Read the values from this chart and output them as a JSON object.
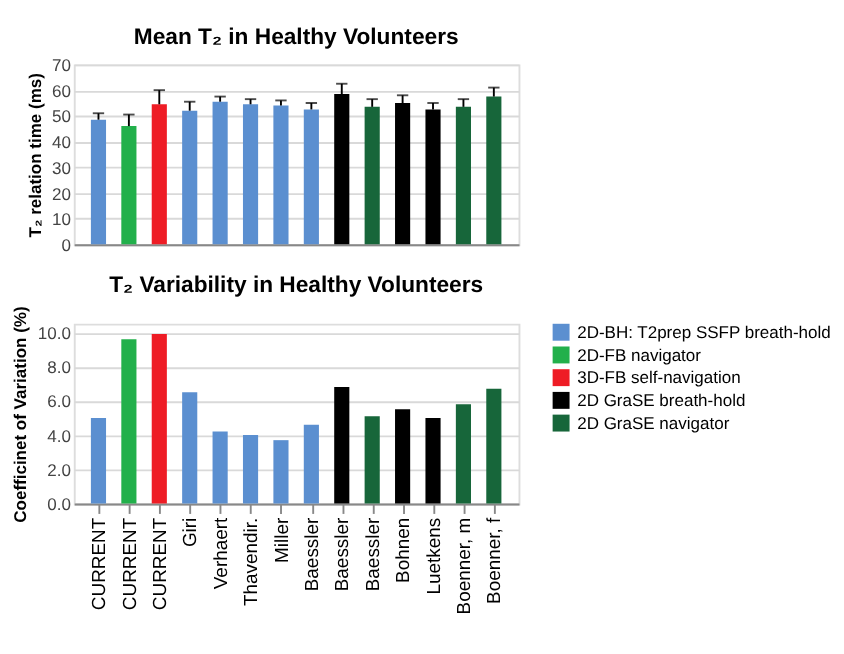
{
  "chart_data": [
    {
      "type": "bar",
      "title": "Mean T₂ in Healthy Volunteers",
      "ylabel": "T₂ relation time (ms)",
      "categories": [
        null,
        null,
        null,
        null,
        null,
        null,
        null,
        null,
        null,
        null,
        null,
        null,
        null,
        null
      ],
      "values": [
        48.5,
        46,
        54.5,
        52,
        55.5,
        54.5,
        54,
        52.5,
        58.5,
        53.5,
        55,
        52.5,
        53.5,
        57.5
      ],
      "errors": [
        [
          48.5,
          51
        ],
        [
          46,
          50.5
        ],
        [
          54.5,
          60
        ],
        [
          52,
          55.5
        ],
        [
          55.5,
          57.5
        ],
        [
          54.5,
          56.5
        ],
        [
          54,
          56
        ],
        [
          52.5,
          55
        ],
        [
          58.5,
          62.5
        ],
        [
          53.5,
          56.5
        ],
        [
          55,
          58
        ],
        [
          52.5,
          55
        ],
        [
          53.5,
          56.5
        ],
        [
          57.5,
          61
        ]
      ],
      "colors": [
        "#5b8fd0",
        "#22b04b",
        "#ee1c25",
        "#5b8fd0",
        "#5b8fd0",
        "#5b8fd0",
        "#5b8fd0",
        "#5b8fd0",
        "#000000",
        "#17663a",
        "#000000",
        "#000000",
        "#17663a",
        "#17663a"
      ],
      "ylim": [
        0,
        70
      ],
      "yticks": [
        0,
        10,
        20,
        30,
        40,
        50,
        60,
        70
      ],
      "grid": "y",
      "tick_labels": "y"
    },
    {
      "type": "bar",
      "title": "T₂ Variability in Healthy Volunteers",
      "ylabel": "Coefficinet of Variation (%)",
      "categories": [
        "CURRENT",
        "CURRENT",
        "CURRENT",
        "Giri",
        "Verhaert",
        "Thavendir.",
        "Miller",
        "Baessler",
        "Baessler",
        "Baessler",
        "Bohnen",
        "Luetkens",
        "Boenner, m",
        "Boenner, f"
      ],
      "series": [
        {
          "name": "2D-BH: T2prep SSFP breath-hold",
          "color": "#5b8fd0",
          "values": [
            5.0,
            null,
            null,
            6.5,
            4.2,
            4.0,
            3.7,
            4.6,
            null,
            null,
            null,
            null,
            null,
            null
          ]
        },
        {
          "name": "2D-FB navigator",
          "color": "#22b04b",
          "values": [
            null,
            9.6,
            null,
            null,
            null,
            null,
            null,
            null,
            null,
            null,
            null,
            null,
            null,
            null
          ]
        },
        {
          "name": "3D-FB self-navigation",
          "color": "#ee1c25",
          "values": [
            null,
            null,
            9.9,
            null,
            null,
            null,
            null,
            null,
            null,
            null,
            null,
            null,
            null,
            null
          ]
        },
        {
          "name": "2D GraSE breath-hold",
          "color": "#000000",
          "values": [
            null,
            null,
            null,
            null,
            null,
            null,
            null,
            null,
            6.8,
            null,
            5.5,
            5.0,
            null,
            null
          ]
        },
        {
          "name": "2D GraSE navigator",
          "color": "#17663a",
          "values": [
            null,
            null,
            null,
            null,
            null,
            null,
            null,
            null,
            null,
            5.1,
            null,
            null,
            5.8,
            6.7
          ]
        }
      ],
      "ylim": [
        0,
        10.5
      ],
      "yticks": [
        {
          "value": 0,
          "label": "0.0"
        },
        {
          "value": 2,
          "label": "2.0"
        },
        {
          "value": 4,
          "label": "4.0"
        },
        {
          "value": 6,
          "label": "6.0"
        },
        {
          "value": 8,
          "label": "8.0"
        },
        {
          "value": 10,
          "label": "10.0"
        }
      ],
      "grid": "y",
      "legend": "right"
    }
  ]
}
